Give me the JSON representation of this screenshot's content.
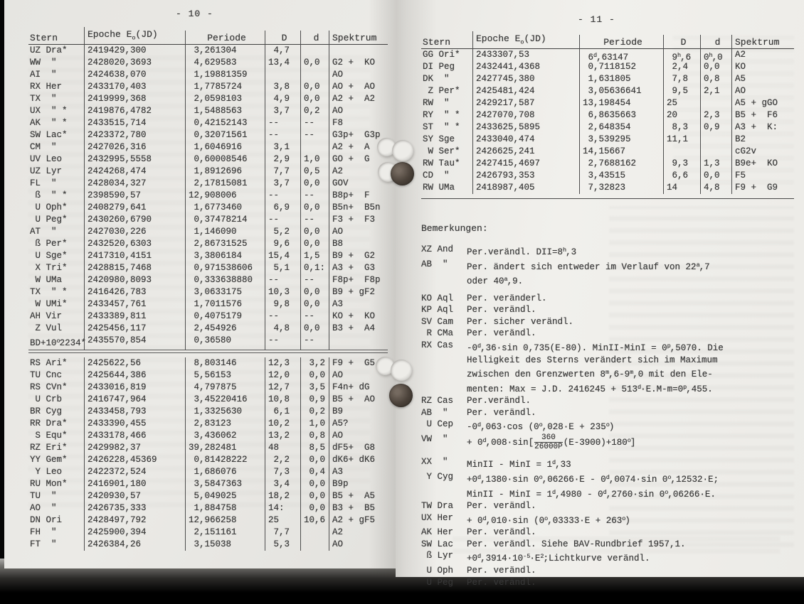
{
  "page_left": {
    "page_number": "- 10 -",
    "table": {
      "headers": [
        "Stern",
        "Epoche E_{o}(JD)",
        "Periode",
        "D",
        "d",
        "Spektrum"
      ],
      "rows_block1": [
        [
          "UZ Dra*",
          "2419429,300",
          " 3,261304",
          " 4,7",
          "",
          ""
        ],
        [
          "WW  \"",
          "2428020,3693",
          " 4,629583",
          "13,4",
          "0,0",
          "G2 +  KO"
        ],
        [
          "AI  \"",
          "2424638,070",
          " 1,19881359",
          "",
          "",
          "AO"
        ],
        [
          "RX Her",
          "2433170,403",
          " 1,7785724",
          " 3,8",
          "0,0",
          "AO +  AO"
        ],
        [
          "TX  \"",
          "2419999,368",
          " 2,0598103",
          " 4,9",
          "0,0",
          "A2 +  A2"
        ],
        [
          "UX  \" *",
          "2419876,4782",
          " 1,5488563",
          " 3,7",
          "0,2",
          "AO"
        ],
        [
          "AK  \" *",
          "2433515,714",
          " 0,42152143",
          "--",
          "--",
          "F8"
        ],
        [
          "SW Lac*",
          "2423372,780",
          " 0,32071561",
          "--",
          "--",
          "G3p+  G3p"
        ],
        [
          "CM  \"",
          "2427026,316",
          " 1,6046916",
          " 3,1",
          "",
          "A2 +  A"
        ],
        [
          "UV Leo",
          "2432995,5558",
          " 0,60008546",
          " 2,9",
          "1,0",
          "GO +  G"
        ],
        [
          "UZ Lyr",
          "2424268,474",
          " 1,8912696",
          " 7,7",
          "0,5",
          "A2"
        ],
        [
          "FL  \"",
          "2428034,327",
          " 2,17815081",
          " 3,7",
          "0,0",
          "GOV"
        ],
        [
          " ß  \" *",
          "2398590,57",
          "12,908006",
          "--",
          "--",
          "B8p+  F"
        ],
        [
          " U Oph*",
          "2408279,641",
          " 1,6773460",
          " 6,9",
          "0,0",
          "B5n+  B5n"
        ],
        [
          " U Peg*",
          "2430260,6790",
          " 0,37478214",
          "--",
          "--",
          "F3 +  F3"
        ],
        [
          "AT  \"",
          "2427030,226",
          " 1,146090",
          " 5,2",
          "0,0",
          "AO"
        ],
        [
          " ß Per*",
          "2432520,6303",
          " 2,86731525",
          " 9,6",
          "0,0",
          "B8"
        ],
        [
          " U Sge*",
          "2417310,4151",
          " 3,3806184",
          "15,4",
          "1,5",
          "B9 +  G2"
        ],
        [
          " X Tri*",
          "2428815,7468",
          " 0,971538606",
          " 5,1",
          "0,1:",
          "A3 +  G3"
        ],
        [
          " W UMa",
          "2420980,8093",
          " 0,333638880",
          "--",
          "--",
          "F8p+  F8p"
        ],
        [
          "TX  \" *",
          "2416426,783",
          " 3,0633175",
          "10,3",
          "0,0",
          "B9 + gF2"
        ],
        [
          " W UMi*",
          "2433457,761",
          " 1,7011576",
          " 9,8",
          "0,0",
          "A3"
        ],
        [
          "AH Vir",
          "2433389,811",
          " 0,4075179",
          "--",
          "--",
          "KO +  KO"
        ],
        [
          " Z Vul",
          "2425456,117",
          " 2,454926",
          " 4,8",
          "0,0",
          "B3 +  A4"
        ],
        [
          "BD+10^{o}2234*",
          "2435570,854",
          " 0,36580",
          "--",
          "--",
          ""
        ]
      ],
      "rows_block2": [
        [
          "RS Ari*",
          "2425622,56",
          " 8,803146",
          "12,3",
          " 3,2",
          "F9 +  G5"
        ],
        [
          "TU Cnc",
          "2425644,386",
          " 5,56153",
          "12,0",
          " 0,0",
          "AO"
        ],
        [
          "RS CVn*",
          "2433016,819",
          " 4,797875",
          "12,7",
          " 3,5",
          "F4n+ dG"
        ],
        [
          " U Crb",
          "2416747,964",
          " 3,45220416",
          "10,8",
          " 0,9",
          "B5 +  AO"
        ],
        [
          "BR Cyg",
          "2433458,793",
          " 1,3325630",
          " 6,1",
          " 0,2",
          "B9"
        ],
        [
          "RR Dra*",
          "2433390,455",
          " 2,83123",
          "10,2",
          " 1,0",
          "A5?"
        ],
        [
          " S Equ*",
          "2433178,466",
          " 3,436062",
          "13,2",
          " 0,8",
          "AO"
        ],
        [
          "RZ Eri*",
          "2429982,37",
          "39,282481",
          "48",
          " 8,5",
          "dF5+  G8"
        ],
        [
          "YY Gem*",
          "2426228,45369",
          " 0,81428222",
          " 2,2",
          " 0,0",
          "dK6+ dK6"
        ],
        [
          " Y Leo",
          "2422372,524",
          " 1,686076",
          " 7,3",
          " 0,4",
          "A3"
        ],
        [
          "RU Mon*",
          "2416901,180",
          " 3,5847363",
          " 3,4",
          " 0,0",
          "B9p"
        ],
        [
          "TU  \"",
          "2420930,57",
          " 5,049025",
          "18,2",
          " 0,0",
          "B5 +  A5"
        ],
        [
          "AO  \"",
          "2426735,333",
          " 1,884758",
          "14:",
          " 0,0",
          "B3 +  B5"
        ],
        [
          "DN Ori",
          "2428497,792",
          "12,966258",
          "25",
          "10,6",
          "A2 + gF5"
        ],
        [
          "FH  \"",
          "2425900,394",
          " 2,151161",
          " 7,7",
          "",
          "A2"
        ],
        [
          "FT  \"",
          "2426384,26",
          " 3,15038",
          " 5,3",
          "",
          "AO"
        ]
      ]
    }
  },
  "page_right": {
    "page_number": "- 11 -",
    "table": {
      "headers": [
        "Stern",
        "Epoche E_{o}(JD)",
        "Periode",
        "D",
        "d",
        "Spektrum"
      ],
      "rows": [
        [
          "GG Ori*",
          "2433307,53",
          " 6^{d},63147",
          " 9^{h},6",
          "0^{h},0",
          "A2"
        ],
        [
          "DI Peg",
          "2432441,4368",
          " 0,7118152",
          " 2,4",
          "0,0",
          "KO"
        ],
        [
          "DK  \"",
          "2427745,380",
          " 1,631805",
          " 7,8",
          "0,8",
          "A5"
        ],
        [
          " Z Per*",
          "2425481,424",
          " 3,05636641",
          " 9,5",
          "2,1",
          "AO"
        ],
        [
          "RW  \"",
          "2429217,587",
          "13,198454",
          "25",
          "",
          "A5 + gGO"
        ],
        [
          "RY  \" *",
          "2427070,708",
          " 6,8635663",
          "20",
          "2,3",
          "B5 +  F6"
        ],
        [
          "ST  \" *",
          "2433625,5895",
          " 2,648354",
          " 8,3",
          "0,9",
          "A3 +  K:"
        ],
        [
          "SY Sge",
          "2433040,474",
          " 3,539295",
          "11,1",
          "",
          "B2"
        ],
        [
          " W Ser*",
          "2426625,241",
          "14,15667",
          "",
          "",
          "cG2v"
        ],
        [
          "RW Tau*",
          "2427415,4697",
          " 2,7688162",
          " 9,3",
          "1,3",
          "B9e+  KO"
        ],
        [
          "CD  \"",
          "2426793,353",
          " 3,43515",
          " 6,6",
          "0,0",
          "F5"
        ],
        [
          "RW UMa",
          "2418987,405",
          " 7,32823",
          "14",
          "4,8",
          "F9 +  G9"
        ]
      ]
    },
    "remarks_heading": "Bemerkungen:",
    "remarks": [
      {
        "star": "XZ And",
        "text": "Per.verändl. DII=8^{h},3"
      },
      {
        "star": "AB  \"",
        "text": "Per. ändert sich entweder im Verlauf von 22^{a},7\noder 40^{a},9."
      },
      {
        "star": "KO Aql",
        "text": "Per. veränderl.",
        "gap": true
      },
      {
        "star": "KP Aql",
        "text": "Per. verändl."
      },
      {
        "star": "SV Cam",
        "text": "Per. sicher verändl."
      },
      {
        "star": " R CMa",
        "text": "Per. verändl."
      },
      {
        "star": "RX Cas",
        "text": "-0^{d},36·sin 0,735(E-80). MinII-MinI = 0^{p},5070. Die\nHelligkeit des Sterns verändert sich im Maximum\nzwischen den Grenzwerten 8^{m},6-9^{m},0 mit den Ele-\nmenten: Max = J.D. 2416245 + 513^{d}·E.M-m=0^{p},455."
      },
      {
        "star": "RZ Cas",
        "text": "Per.verändl."
      },
      {
        "star": "AB  \"",
        "text": "Per. verändl."
      },
      {
        "star": " U Cep",
        "text": "-0^{d},063·cos (0^{o},028·E + 235^{o})"
      },
      {
        "star": "VW  \"",
        "text": "+ 0^{d},008·sin[~{360|26000P}(E-3900)+180^{o}]"
      },
      {
        "star": "XX  \"",
        "text": "MinII - MinI = 1^{d},33",
        "gap": true
      },
      {
        "star": " Y Cyg",
        "text": "+0^{d},1380·sin 0^{o},06266·E - 0^{d},0074·sin 0^{o},12532·E;\nMinII - MinI = 1^{d},4980 - 0^{d},2760·sin 0^{o},06266·E."
      },
      {
        "star": "TW Dra",
        "text": "Per. verändl."
      },
      {
        "star": "UX Her",
        "text": "+ 0^{d},010·sin (0^{o},03333·E + 263^{o})"
      },
      {
        "star": "AK Her",
        "text": "Per. verändl."
      },
      {
        "star": "SW Lac",
        "text": "Per. verändl. Siehe BAV-Rundbrief 1957,1."
      },
      {
        "star": " ß Lyr",
        "text": "+0^{d},3914·10^{-5}·E^{2};Lichtkurve verändl."
      },
      {
        "star": " U Oph",
        "text": "Per. verändl."
      },
      {
        "star": " U Peg",
        "text": "Per. verändl."
      }
    ]
  }
}
